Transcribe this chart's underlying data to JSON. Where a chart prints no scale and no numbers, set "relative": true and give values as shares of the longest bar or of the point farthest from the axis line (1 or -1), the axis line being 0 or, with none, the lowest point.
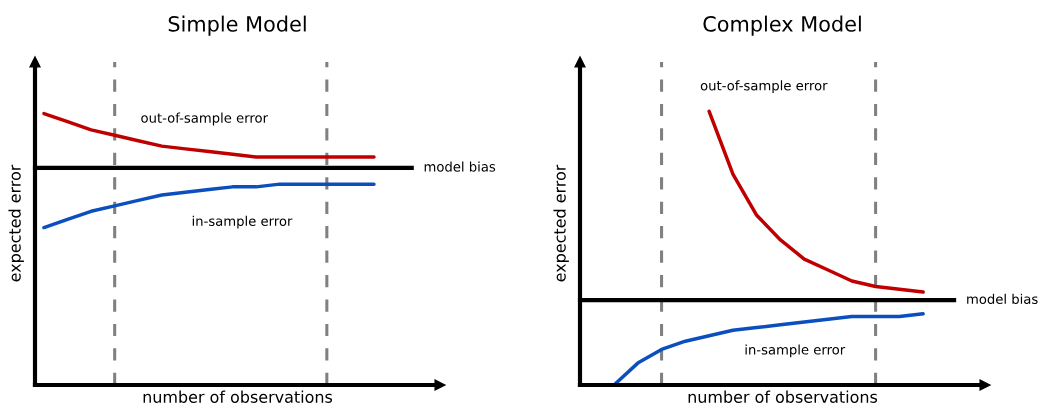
{
  "chart_data": [
    {
      "type": "line",
      "title": "Simple Model",
      "xlabel": "number of observations",
      "ylabel": "expected error",
      "relative": true,
      "categories": [
        null,
        null,
        null,
        null,
        null,
        null,
        null,
        null,
        null,
        null,
        null,
        null,
        null,
        null,
        null
      ],
      "series": [
        {
          "name": "out-of-sample error",
          "color": "#c00000",
          "values": [
            1.0,
            0.97,
            0.94,
            0.92,
            0.9,
            0.88,
            0.87,
            0.86,
            0.85,
            0.84,
            0.84,
            0.84,
            0.84,
            0.84,
            0.84
          ]
        },
        {
          "name": "in-sample error",
          "color": "#0b4fbf",
          "values": [
            0.58,
            0.61,
            0.64,
            0.66,
            0.68,
            0.7,
            0.71,
            0.72,
            0.73,
            0.73,
            0.74,
            0.74,
            0.74,
            0.74,
            0.74
          ]
        }
      ],
      "ref_lines": [
        {
          "axis": "y",
          "value": 0.8,
          "label": "model bias",
          "color": "#000000",
          "line_style": "solid"
        }
      ]
    },
    {
      "type": "line",
      "title": "Complex Model",
      "xlabel": "number of observations",
      "ylabel": "expected error",
      "relative": true,
      "categories": [
        null,
        null,
        null,
        null,
        null,
        null,
        null,
        null,
        null,
        null,
        null,
        null,
        null,
        null
      ],
      "series": [
        {
          "name": "out-of-sample error",
          "color": "#c00000",
          "values": [
            null,
            null,
            null,
            null,
            1.0,
            0.77,
            0.62,
            0.53,
            0.46,
            0.42,
            0.38,
            0.36,
            0.35,
            0.34
          ]
        },
        {
          "name": "in-sample error",
          "color": "#0b4fbf",
          "values": [
            0.0,
            0.08,
            0.13,
            0.16,
            0.18,
            0.2,
            0.21,
            0.22,
            0.23,
            0.24,
            0.25,
            0.25,
            0.25,
            0.26
          ]
        }
      ],
      "ref_lines": [
        {
          "axis": "y",
          "value": 0.31,
          "label": "model bias",
          "color": "#000000",
          "line_style": "solid"
        }
      ]
    }
  ]
}
